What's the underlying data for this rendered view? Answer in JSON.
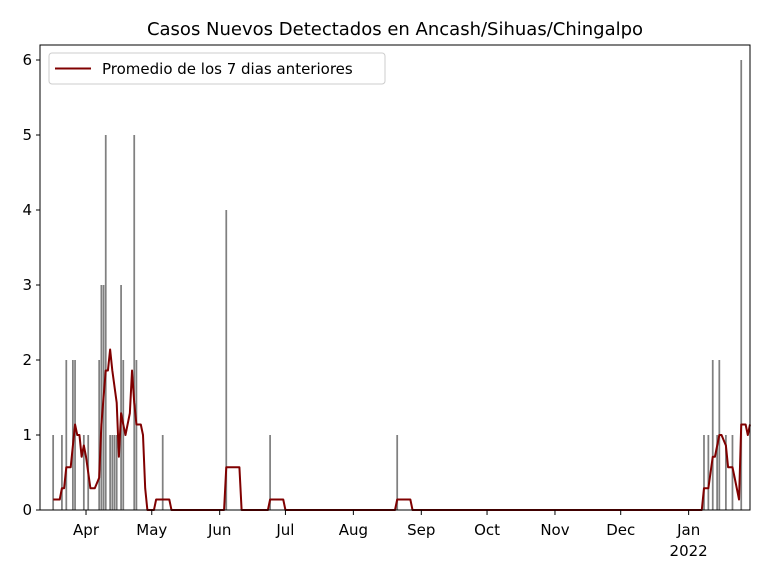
{
  "chart_data": {
    "type": "bar-line",
    "title": "Casos Nuevos Detectados en Ancash/Sihuas/Chingalpo",
    "xlim": [
      10,
      334
    ],
    "xticks": [
      {
        "value": 31,
        "label": "Apr"
      },
      {
        "value": 61,
        "label": "May"
      },
      {
        "value": 92,
        "label": "Jun"
      },
      {
        "value": 122,
        "label": "Jul"
      },
      {
        "value": 153,
        "label": "Aug"
      },
      {
        "value": 184,
        "label": "Sep"
      },
      {
        "value": 214,
        "label": "Oct"
      },
      {
        "value": 245,
        "label": "Nov"
      },
      {
        "value": 275,
        "label": "Dec"
      },
      {
        "value": 306,
        "label": "Jan\n2022"
      }
    ],
    "ylim": [
      0,
      6.2
    ],
    "yticks": [
      0,
      1,
      2,
      3,
      4,
      5,
      6
    ],
    "legend": "upper left",
    "series": [
      {
        "kind": "bar",
        "color": "#808080",
        "x": [
          16,
          20,
          22,
          25,
          26,
          30,
          32,
          37,
          38,
          39,
          40,
          42,
          43,
          44,
          45,
          47,
          48,
          53,
          54,
          66,
          95,
          115,
          173,
          313,
          315,
          317,
          319,
          320,
          323,
          326,
          330
        ],
        "values": [
          1,
          1,
          2,
          2,
          2,
          1,
          1,
          2,
          3,
          3,
          5,
          1,
          1,
          1,
          1,
          3,
          2,
          5,
          2,
          1,
          4,
          1,
          1,
          1,
          1,
          2,
          1,
          2,
          1,
          1,
          6
        ]
      },
      {
        "kind": "line",
        "name": "Promedio de los 7 dias anteriores",
        "color": "#800000",
        "x": [
          16,
          19,
          20,
          21,
          22,
          24,
          26,
          27,
          28,
          29,
          30,
          31,
          33,
          35,
          37,
          38,
          40,
          41,
          42,
          43,
          45,
          46,
          47,
          48,
          49,
          51,
          52,
          53,
          54,
          56,
          57,
          58,
          59,
          62,
          63,
          69,
          70,
          94,
          95,
          101,
          102,
          114,
          115,
          121,
          122,
          172,
          173,
          179,
          180,
          312,
          313,
          315,
          317,
          318,
          320,
          321,
          323,
          324,
          326,
          327,
          329,
          330,
          332,
          333,
          334
        ],
        "values": [
          0.14,
          0.14,
          0.29,
          0.29,
          0.57,
          0.57,
          1.14,
          1.0,
          1.0,
          0.71,
          0.86,
          0.71,
          0.29,
          0.29,
          0.43,
          1.14,
          1.86,
          1.86,
          2.14,
          1.86,
          1.43,
          0.71,
          1.29,
          1.14,
          1.0,
          1.29,
          1.86,
          1.43,
          1.14,
          1.14,
          1.0,
          0.29,
          0,
          0,
          0.14,
          0.14,
          0,
          0,
          0.57,
          0.57,
          0,
          0,
          0.14,
          0.14,
          0,
          0,
          0.14,
          0.14,
          0,
          0,
          0.29,
          0.29,
          0.71,
          0.71,
          1.0,
          1.0,
          0.86,
          0.57,
          0.57,
          0.43,
          0.14,
          1.14,
          1.14,
          1.0,
          1.14
        ]
      }
    ]
  }
}
